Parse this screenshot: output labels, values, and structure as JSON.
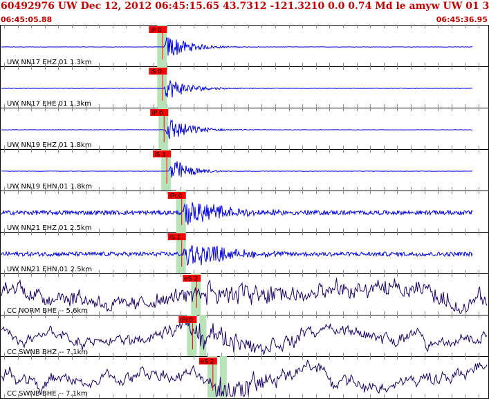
{
  "header": {
    "title": "60492976 UW Dec 12, 2012 06:45:15.65   43.7312 -121.3210  0.0 0.74 Md le amyw UW 01   3",
    "start_time": "06:45:05.88",
    "end_time": "06:45:36.95"
  },
  "colors": {
    "trace_blue": "#0000dd",
    "trace_navy": "#1a0060",
    "pick_red": "#ff0000",
    "window_green": "#b8e2b8",
    "grid": "#888888"
  },
  "traces": [
    {
      "label": "UW NN17 EHZ 01 1.3km",
      "pick": "iP 0",
      "color": "blue",
      "onset_tick": 11.8,
      "noise": 0.01,
      "amp": 0.9,
      "decay": 5
    },
    {
      "label": "UW NN17 EHE 01 1.3km",
      "pick": "iS 0",
      "color": "blue",
      "onset_tick": 11.8,
      "noise": 0.01,
      "amp": 0.8,
      "decay": 5
    },
    {
      "label": "UW NN19 EHZ 01 1.8km",
      "pick": "iP 0",
      "color": "blue",
      "onset_tick": 11.9,
      "noise": 0.01,
      "amp": 0.9,
      "decay": 5
    },
    {
      "label": "UW NN19 EHN 01 1.8km",
      "pick": "iS 1",
      "color": "blue",
      "onset_tick": 12.1,
      "noise": 0.01,
      "amp": 1.0,
      "decay": 4
    },
    {
      "label": "UW NN21 EHZ 01 2.5km",
      "pick": "iPc0",
      "color": "blue",
      "onset_tick": 13.2,
      "noise": 0.12,
      "amp": 0.95,
      "decay": 9
    },
    {
      "label": "UW NN21 EHN 01 2.5km",
      "pick": "iS 1",
      "color": "blue",
      "onset_tick": 13.2,
      "noise": 0.12,
      "amp": 0.95,
      "decay": 9
    },
    {
      "label": "CC NORM BHE -- 5.6km",
      "pick": "eS 2",
      "color": "navy",
      "onset_tick": 14.3,
      "noise": 0.55,
      "amp": 0.6,
      "decay": 30
    },
    {
      "label": "CC SWNB BHZ -- 7.1km",
      "pick": "iPc0",
      "color": "navy",
      "onset_tick": 14.0,
      "noise": 0.3,
      "amp": 0.8,
      "decay": 12
    },
    {
      "label": "CC SWNB BHE -- 7.1km",
      "pick": "eS 2",
      "color": "navy",
      "onset_tick": 15.5,
      "noise": 0.3,
      "amp": 0.95,
      "decay": 15
    }
  ]
}
